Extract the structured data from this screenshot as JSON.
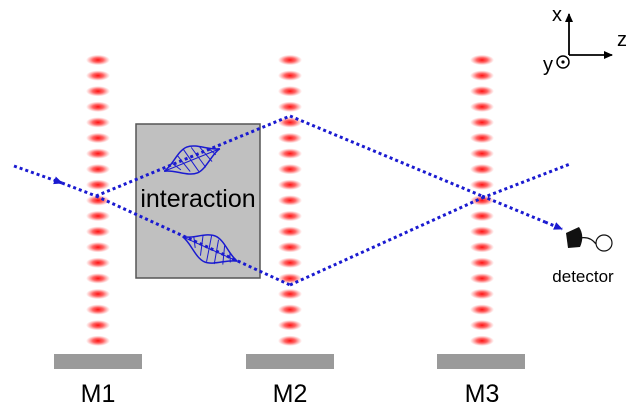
{
  "diagram": {
    "interaction_label": "interaction",
    "detector_label": "detector",
    "mirrors": [
      {
        "label": "M1"
      },
      {
        "label": "M2"
      },
      {
        "label": "M3"
      }
    ],
    "axes": {
      "x_label": "x",
      "y_label": "y",
      "z_label": "z"
    },
    "colors": {
      "beam": "#1a1ad0",
      "lattice": "#ff2020",
      "mirror": "#9a9a9a",
      "interaction_box": "#c0c0c0",
      "box_border": "#555555",
      "detector": "#111111"
    }
  }
}
